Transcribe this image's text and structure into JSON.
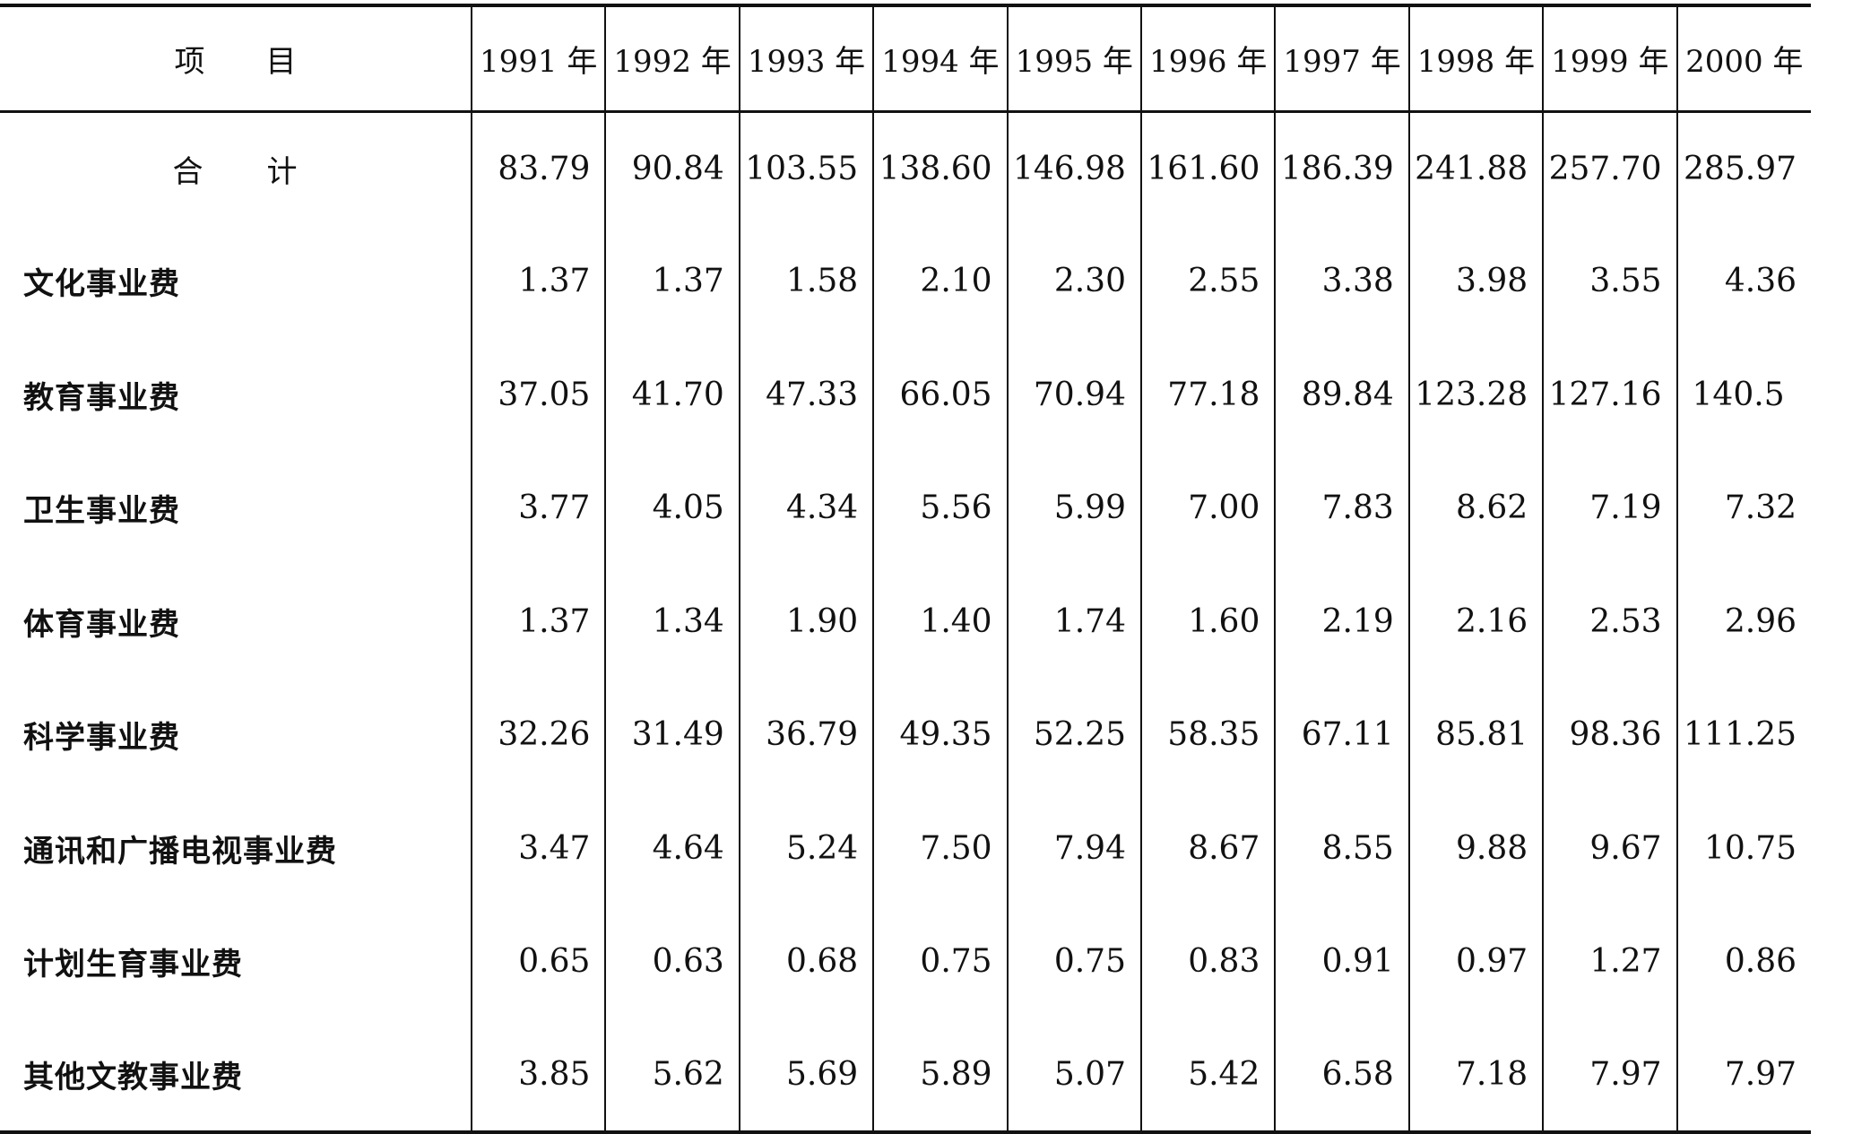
{
  "table": {
    "header_item": "项　　目",
    "years": [
      "1991 年",
      "1992 年",
      "1993 年",
      "1994 年",
      "1995 年",
      "1996 年",
      "1997 年",
      "1998 年",
      "1999 年",
      "2000 年"
    ],
    "total": {
      "label": "合　　计",
      "values": [
        "83.79",
        "90.84",
        "103.55",
        "138.60",
        "146.98",
        "161.60",
        "186.39",
        "241.88",
        "257.70",
        "285.97"
      ]
    },
    "rows": [
      {
        "label": "文化事业费",
        "values": [
          "1.37",
          "1.37",
          "1.58",
          "2.10",
          "2.30",
          "2.55",
          "3.38",
          "3.98",
          "3.55",
          "4.36"
        ]
      },
      {
        "label": "教育事业费",
        "values": [
          "37.05",
          "41.70",
          "47.33",
          "66.05",
          "70.94",
          "77.18",
          "89.84",
          "123.28",
          "127.16",
          "140.5"
        ]
      },
      {
        "label": "卫生事业费",
        "values": [
          "3.77",
          "4.05",
          "4.34",
          "5.56",
          "5.99",
          "7.00",
          "7.83",
          "8.62",
          "7.19",
          "7.32"
        ]
      },
      {
        "label": "体育事业费",
        "values": [
          "1.37",
          "1.34",
          "1.90",
          "1.40",
          "1.74",
          "1.60",
          "2.19",
          "2.16",
          "2.53",
          "2.96"
        ]
      },
      {
        "label": "科学事业费",
        "values": [
          "32.26",
          "31.49",
          "36.79",
          "49.35",
          "52.25",
          "58.35",
          "67.11",
          "85.81",
          "98.36",
          "111.25"
        ]
      },
      {
        "label": "通讯和广播电视事业费",
        "values": [
          "3.47",
          "4.64",
          "5.24",
          "7.50",
          "7.94",
          "8.67",
          "8.55",
          "9.88",
          "9.67",
          "10.75"
        ]
      },
      {
        "label": "计划生育事业费",
        "values": [
          "0.65",
          "0.63",
          "0.68",
          "0.75",
          "0.75",
          "0.83",
          "0.91",
          "0.97",
          "1.27",
          "0.86"
        ]
      },
      {
        "label": "其他文教事业费",
        "values": [
          "3.85",
          "5.62",
          "5.69",
          "5.89",
          "5.07",
          "5.42",
          "6.58",
          "7.18",
          "7.97",
          "7.97"
        ]
      }
    ]
  }
}
